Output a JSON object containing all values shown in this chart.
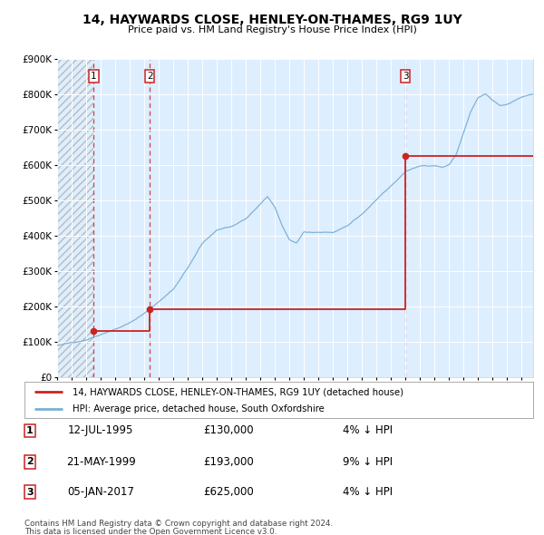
{
  "title": "14, HAYWARDS CLOSE, HENLEY-ON-THAMES, RG9 1UY",
  "subtitle": "Price paid vs. HM Land Registry's House Price Index (HPI)",
  "sales": [
    {
      "label": "1",
      "date": 1995.53,
      "price": 130000,
      "date_str": "12-JUL-1995",
      "pct": "4%"
    },
    {
      "label": "2",
      "date": 1999.38,
      "price": 193000,
      "date_str": "21-MAY-1999",
      "pct": "9%"
    },
    {
      "label": "3",
      "date": 2017.01,
      "price": 625000,
      "date_str": "05-JAN-2017",
      "pct": "4%"
    }
  ],
  "legend_line1": "14, HAYWARDS CLOSE, HENLEY-ON-THAMES, RG9 1UY (detached house)",
  "legend_line2": "HPI: Average price, detached house, South Oxfordshire",
  "footer1": "Contains HM Land Registry data © Crown copyright and database right 2024.",
  "footer2": "This data is licensed under the Open Government Licence v3.0.",
  "hpi_color": "#7ab0d4",
  "price_color": "#cc2222",
  "bg_color": "#ddeeff",
  "grid_color": "#ffffff",
  "ylim": [
    0,
    900000
  ],
  "xlim_start": 1993.0,
  "xlim_end": 2025.8,
  "yticks": [
    0,
    100000,
    200000,
    300000,
    400000,
    500000,
    600000,
    700000,
    800000,
    900000
  ],
  "hpi_seed": 12,
  "hpi_noise_scale": 6000,
  "hpi_points": [
    [
      1993.0,
      90000
    ],
    [
      1994.0,
      98000
    ],
    [
      1995.0,
      108000
    ],
    [
      1996.0,
      122000
    ],
    [
      1997.0,
      140000
    ],
    [
      1998.0,
      158000
    ],
    [
      1999.0,
      185000
    ],
    [
      2000.0,
      220000
    ],
    [
      2001.0,
      258000
    ],
    [
      2002.0,
      320000
    ],
    [
      2003.0,
      390000
    ],
    [
      2004.0,
      430000
    ],
    [
      2005.0,
      440000
    ],
    [
      2006.0,
      460000
    ],
    [
      2007.0,
      500000
    ],
    [
      2007.5,
      520000
    ],
    [
      2008.0,
      490000
    ],
    [
      2008.5,
      440000
    ],
    [
      2009.0,
      400000
    ],
    [
      2009.5,
      390000
    ],
    [
      2010.0,
      420000
    ],
    [
      2011.0,
      420000
    ],
    [
      2012.0,
      420000
    ],
    [
      2013.0,
      440000
    ],
    [
      2014.0,
      470000
    ],
    [
      2015.0,
      510000
    ],
    [
      2016.0,
      550000
    ],
    [
      2017.0,
      590000
    ],
    [
      2017.5,
      600000
    ],
    [
      2018.0,
      610000
    ],
    [
      2018.5,
      610000
    ],
    [
      2019.0,
      610000
    ],
    [
      2019.5,
      605000
    ],
    [
      2020.0,
      610000
    ],
    [
      2020.5,
      640000
    ],
    [
      2021.0,
      700000
    ],
    [
      2021.5,
      760000
    ],
    [
      2022.0,
      800000
    ],
    [
      2022.5,
      810000
    ],
    [
      2023.0,
      790000
    ],
    [
      2023.5,
      775000
    ],
    [
      2024.0,
      780000
    ],
    [
      2024.5,
      790000
    ],
    [
      2025.0,
      800000
    ],
    [
      2025.5,
      805000
    ]
  ]
}
